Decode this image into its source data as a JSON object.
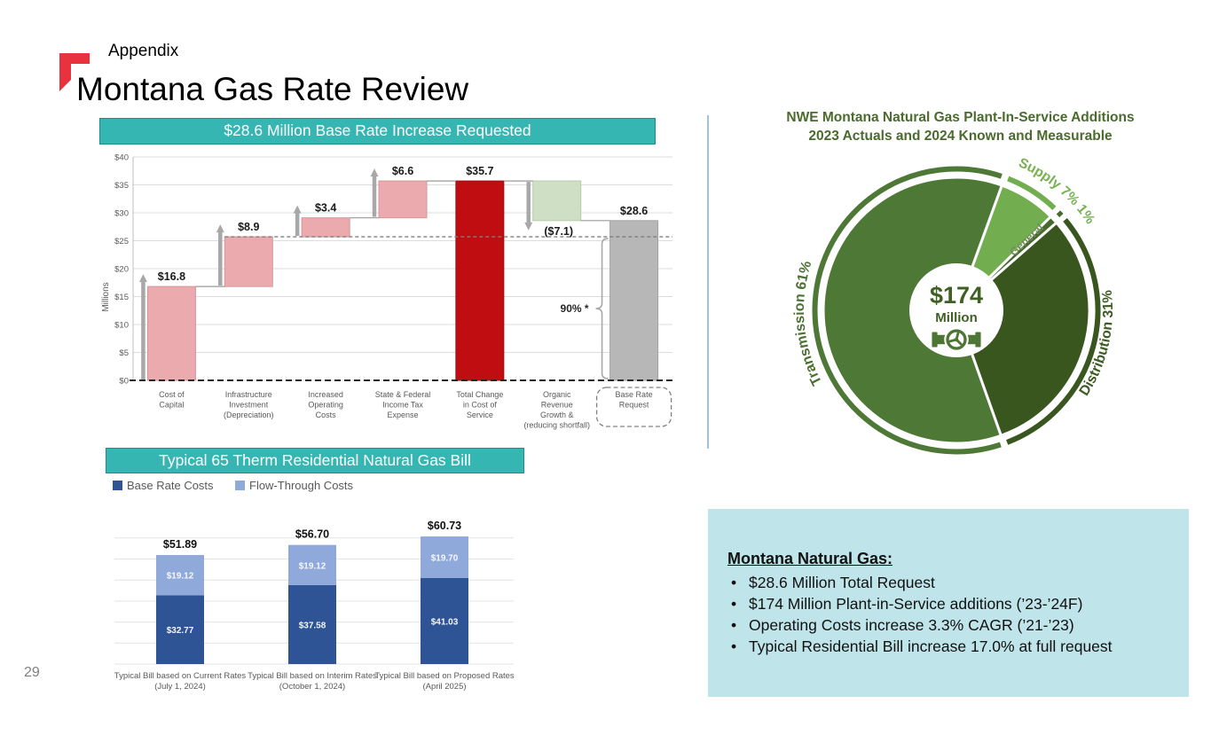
{
  "page_number": "29",
  "header": {
    "eyebrow": "Appendix",
    "title": "Montana Gas Rate Review"
  },
  "colors": {
    "banner_teal": "#35b6b3",
    "banner_border": "#1f8d8a",
    "info_box_bg": "#bfe4e9",
    "logo_red": "#e8323e",
    "divider_blue": "#9dc3e6",
    "waterfall_increase": "#ebabae",
    "waterfall_increase_border": "#d69599",
    "waterfall_total": "#bf0d11",
    "waterfall_total_border": "#a50b0f",
    "waterfall_decrease": "#cfdfc5",
    "waterfall_decrease_border": "#b8cda9",
    "waterfall_result": "#b7b7b7",
    "waterfall_result_border": "#a3a3a3",
    "arrow_gray": "#a8a8a8",
    "axis_text": "#595959",
    "base_rate_blue": "#2e5496",
    "flow_through_blue": "#8fa9db"
  },
  "chart_data": [
    {
      "id": "waterfall",
      "type": "bar",
      "subtype": "waterfall",
      "banner": "$28.6 Million Base Rate Increase Requested",
      "ylabel": "Millions",
      "ylim": [
        0,
        40
      ],
      "ytick_step": 5,
      "ytick_prefix": "$",
      "grid": true,
      "annotation": "90% *",
      "dashed_level": 25.7,
      "bars": [
        {
          "label_lines": [
            "Cost of",
            "Capital"
          ],
          "value_label": "$16.8",
          "start": 0,
          "end": 16.8,
          "kind": "increase"
        },
        {
          "label_lines": [
            "Infrastructure",
            "Investment",
            "(Depreciation)"
          ],
          "value_label": "$8.9",
          "start": 16.8,
          "end": 25.7,
          "kind": "increase"
        },
        {
          "label_lines": [
            "Increased",
            "Operating",
            "Costs"
          ],
          "value_label": "$3.4",
          "start": 25.7,
          "end": 29.1,
          "kind": "increase"
        },
        {
          "label_lines": [
            "State & Federal",
            "Income Tax",
            "Expense"
          ],
          "value_label": "$6.6",
          "start": 29.1,
          "end": 35.7,
          "kind": "increase"
        },
        {
          "label_lines": [
            "Total Change",
            "in Cost of",
            "Service"
          ],
          "value_label": "$35.7",
          "start": 0,
          "end": 35.7,
          "kind": "total"
        },
        {
          "label_lines": [
            "Organic",
            "Revenue",
            "Growth &",
            "(reducing shortfall)"
          ],
          "value_label": "($7.1)",
          "start": 35.7,
          "end": 28.6,
          "kind": "decrease"
        },
        {
          "label_lines": [
            "Base Rate",
            "Request"
          ],
          "value_label": "$28.6",
          "start": 0,
          "end": 28.6,
          "kind": "result"
        }
      ]
    },
    {
      "id": "plant-in-service-pie",
      "type": "pie",
      "title_lines": [
        "NWE Montana Natural Gas Plant-In-Service Additions",
        "2023 Actuals and 2024 Known and Measurable"
      ],
      "center": {
        "value": "$174",
        "unit": "Million",
        "text_color": "#3f6023",
        "icon": "pipeline-valve-icon",
        "icon_color": "#4d7634"
      },
      "start_angle_deg": 20,
      "slices": [
        {
          "name": "Supply",
          "pct": 7,
          "label": "Supply 7%",
          "color": "#72ae4f",
          "label_color": "#76b150"
        },
        {
          "name": "General",
          "pct": 1,
          "label": "1%",
          "color": "#456b2c",
          "label_color": "#8cbf68",
          "inner_label": "General",
          "inner_label_color": "#728c5c"
        },
        {
          "name": "Distribution",
          "pct": 31,
          "label": "Distribution 31%",
          "color": "#39561f",
          "label_color": "#3c5c24"
        },
        {
          "name": "Transmission",
          "pct": 61,
          "label": "Transmission 61%",
          "color": "#4e7836",
          "label_color": "#4c7032"
        }
      ]
    },
    {
      "id": "residential-bill",
      "type": "bar",
      "subtype": "stacked",
      "banner": "Typical 65 Therm Residential Natural Gas Bill",
      "legend": [
        "Base Rate Costs",
        "Flow-Through Costs"
      ],
      "categories": [
        [
          "Typical Bill based on Current Rates",
          "(July 1, 2024)"
        ],
        [
          "Typical Bill based on Interim Rates",
          "(October 1, 2024)"
        ],
        [
          "Typical Bill based on Proposed Rates",
          "(April 2025)"
        ]
      ],
      "series": [
        {
          "name": "Base Rate Costs",
          "values": [
            32.77,
            37.58,
            41.03
          ],
          "labels": [
            "$32.77",
            "$37.58",
            "$41.03"
          ]
        },
        {
          "name": "Flow-Through Costs",
          "values": [
            19.12,
            19.12,
            19.7
          ],
          "labels": [
            "$19.12",
            "$19.12",
            "$19.70"
          ]
        }
      ],
      "totals": [
        "$51.89",
        "$56.70",
        "$60.73"
      ],
      "ylim": [
        0,
        65
      ],
      "grid_step": 10
    }
  ],
  "info_box": {
    "heading": "Montana Natural Gas:",
    "bullets": [
      "$28.6 Million Total Request",
      "$174 Million Plant-in-Service additions (’23-’24F)",
      "Operating Costs increase 3.3% CAGR (’21-’23)",
      "Typical Residential Bill increase 17.0% at full request"
    ]
  }
}
